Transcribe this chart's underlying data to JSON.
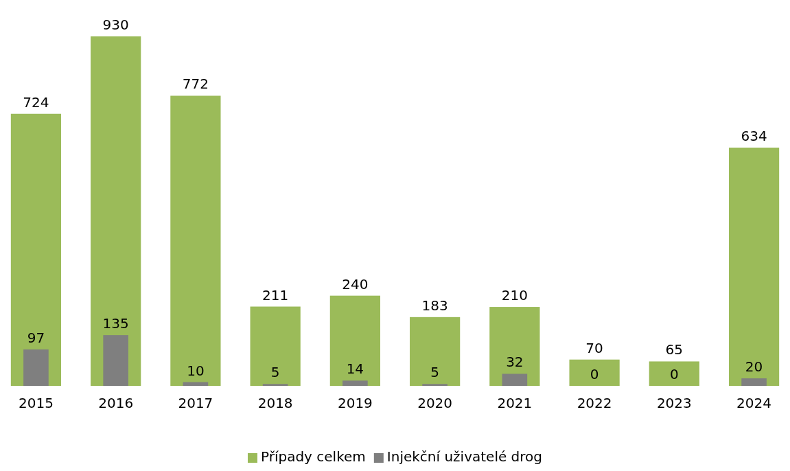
{
  "chart_data": {
    "type": "bar",
    "categories": [
      "2015",
      "2016",
      "2017",
      "2018",
      "2019",
      "2020",
      "2021",
      "2022",
      "2023",
      "2024"
    ],
    "series": [
      {
        "name": "Případy celkem",
        "color": "#9bbb59",
        "values": [
          724,
          930,
          772,
          211,
          240,
          183,
          210,
          70,
          65,
          634
        ]
      },
      {
        "name": "Injekční uživatelé drog",
        "color": "#7f7f7f",
        "values": [
          97,
          135,
          10,
          5,
          14,
          5,
          32,
          0,
          0,
          20
        ]
      }
    ],
    "data_labels": true,
    "legend": "bottom"
  }
}
